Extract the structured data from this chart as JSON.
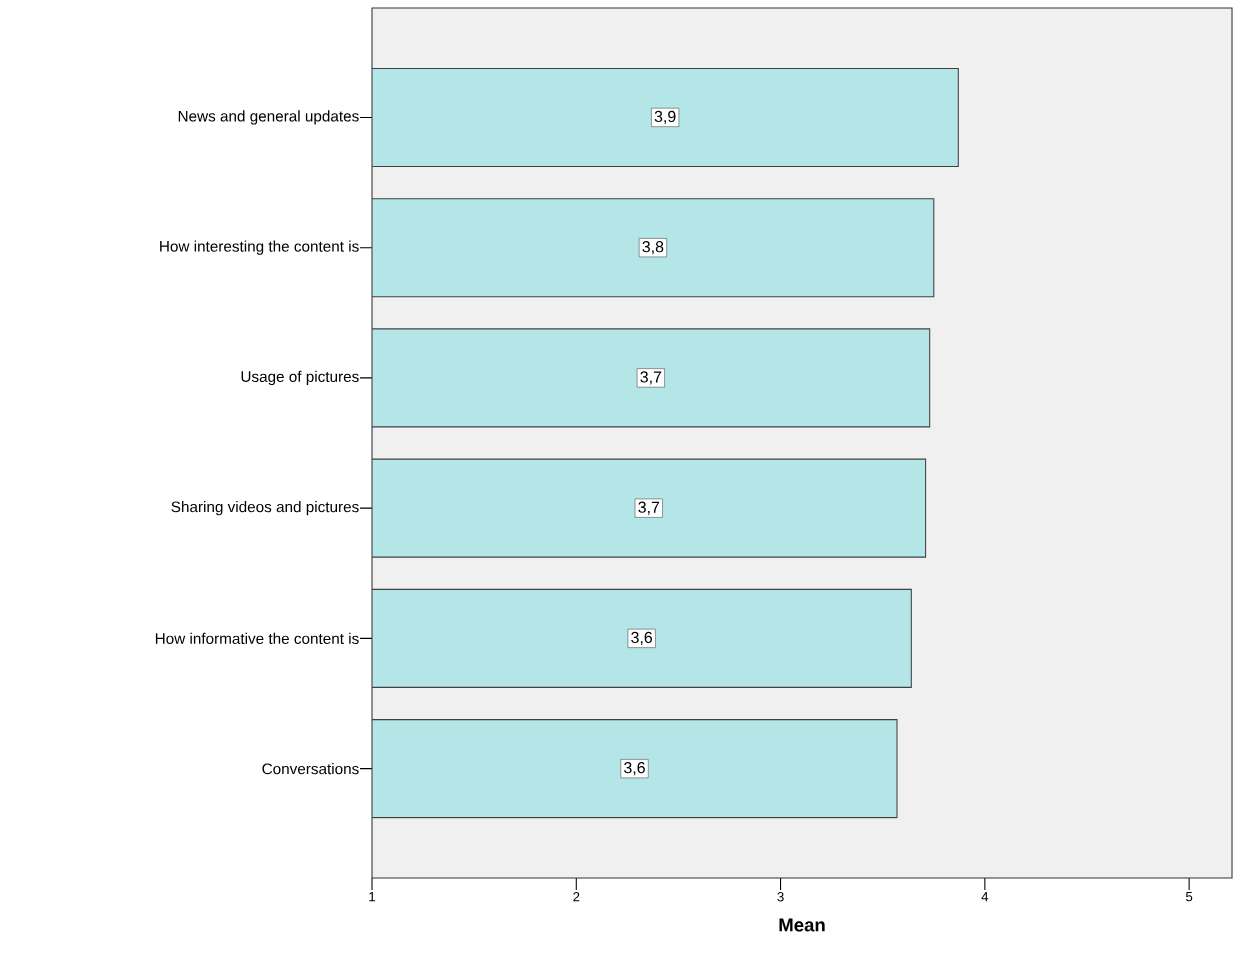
{
  "chart_data": {
    "type": "bar",
    "orientation": "horizontal",
    "xlabel": "Mean",
    "categories": [
      "News and general updates",
      "How interesting the content is",
      "Usage of pictures",
      "Sharing videos and pictures",
      "How informative the content is",
      "Conversations"
    ],
    "values": [
      3.87,
      3.75,
      3.73,
      3.71,
      3.64,
      3.57
    ],
    "value_labels": [
      "3,9",
      "3,8",
      "3,7",
      "3,7",
      "3,6",
      "3,6"
    ],
    "color": "#b4e6e8",
    "xlim": [
      1,
      5.21
    ],
    "xticks": [
      1,
      2,
      3,
      4,
      5
    ],
    "grid": false
  }
}
